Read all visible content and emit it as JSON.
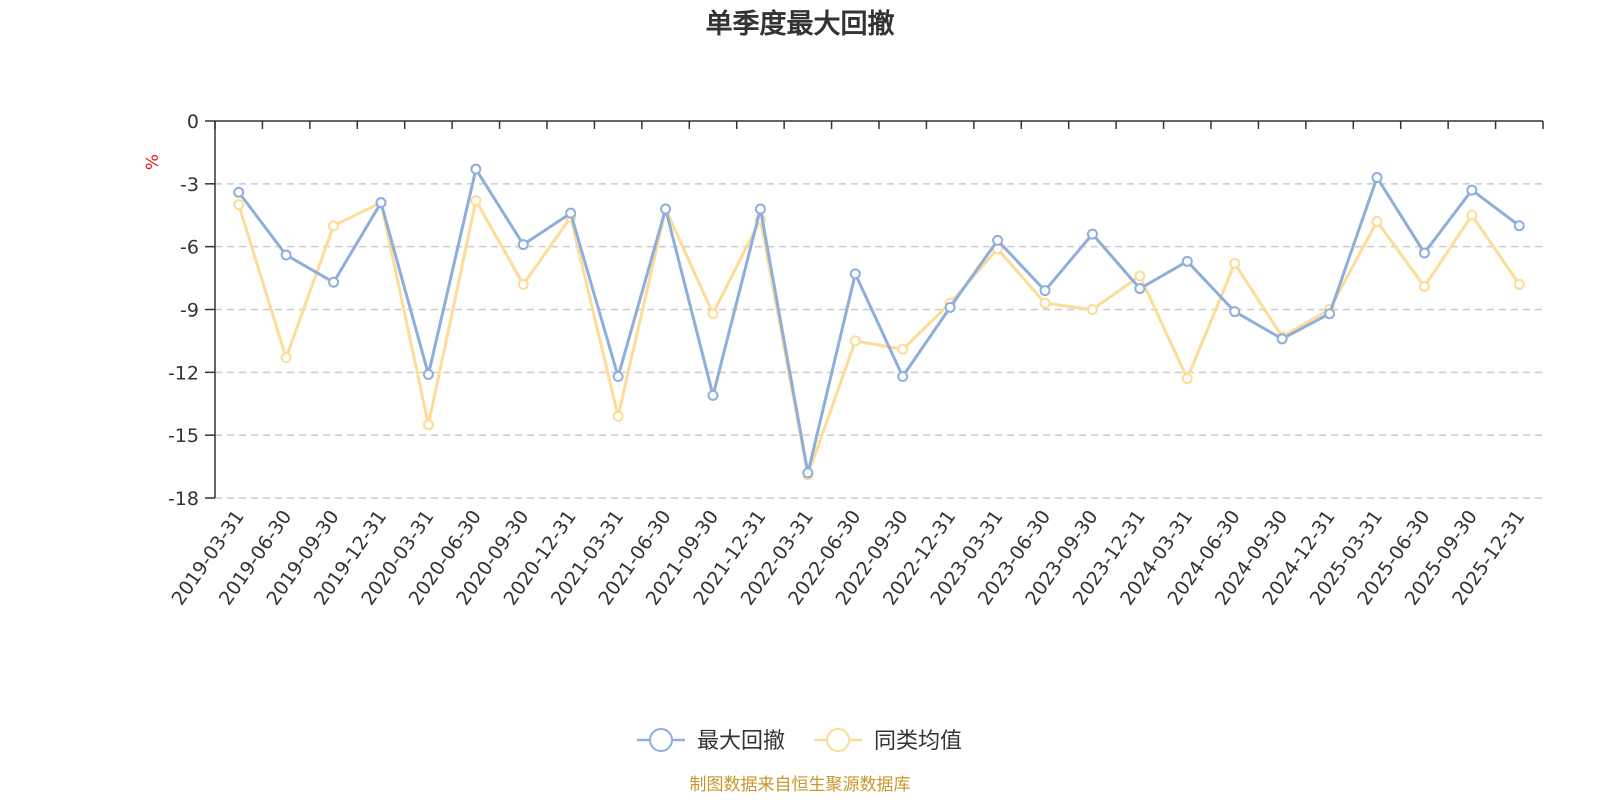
{
  "chart_data": {
    "type": "line",
    "title": "单季度最大回撤",
    "ylabel": "%",
    "xlabel": "",
    "ylim": [
      -18,
      0
    ],
    "yticks": [
      0,
      -3,
      -6,
      -9,
      -12,
      -15,
      -18
    ],
    "grid": true,
    "legend_position": "bottom-center",
    "categories": [
      "2019-03-31",
      "2019-06-30",
      "2019-09-30",
      "2019-12-31",
      "2020-03-31",
      "2020-06-30",
      "2020-09-30",
      "2020-12-31",
      "2021-03-31",
      "2021-06-30",
      "2021-09-30",
      "2021-12-31",
      "2022-03-31",
      "2022-06-30",
      "2022-09-30",
      "2022-12-31",
      "2023-03-31",
      "2023-06-30",
      "2023-09-30",
      "2023-12-31",
      "2024-03-31",
      "2024-06-30",
      "2024-09-30",
      "2024-12-31",
      "2025-03-31",
      "2025-06-30",
      "2025-09-30",
      "2025-12-31"
    ],
    "series": [
      {
        "name": "最大回撤",
        "color": "#8eaedb",
        "values": [
          -3.4,
          -6.4,
          -7.7,
          -3.9,
          -12.1,
          -2.3,
          -5.9,
          -4.4,
          -12.2,
          -4.2,
          -13.1,
          -4.2,
          -16.8,
          -7.3,
          -12.2,
          -8.9,
          -5.7,
          -8.1,
          -5.4,
          -8.0,
          -6.7,
          -9.1,
          -10.4,
          -9.2,
          -2.7,
          -6.3,
          -3.3,
          -5.0
        ]
      },
      {
        "name": "同类均值",
        "color": "#fddc98",
        "values": [
          -4.0,
          -11.3,
          -5.0,
          -3.9,
          -14.5,
          -3.8,
          -7.8,
          -4.6,
          -14.1,
          -4.2,
          -9.2,
          -4.7,
          -16.9,
          -10.5,
          -10.9,
          -8.7,
          -6.1,
          -8.7,
          -9.0,
          -7.4,
          -12.3,
          -6.8,
          -10.3,
          -9.0,
          -4.8,
          -7.9,
          -4.5,
          -7.8
        ]
      }
    ],
    "source": "制图数据来自恒生聚源数据库",
    "source_color": "#c9962c",
    "ylabel_color": "#e02020"
  }
}
